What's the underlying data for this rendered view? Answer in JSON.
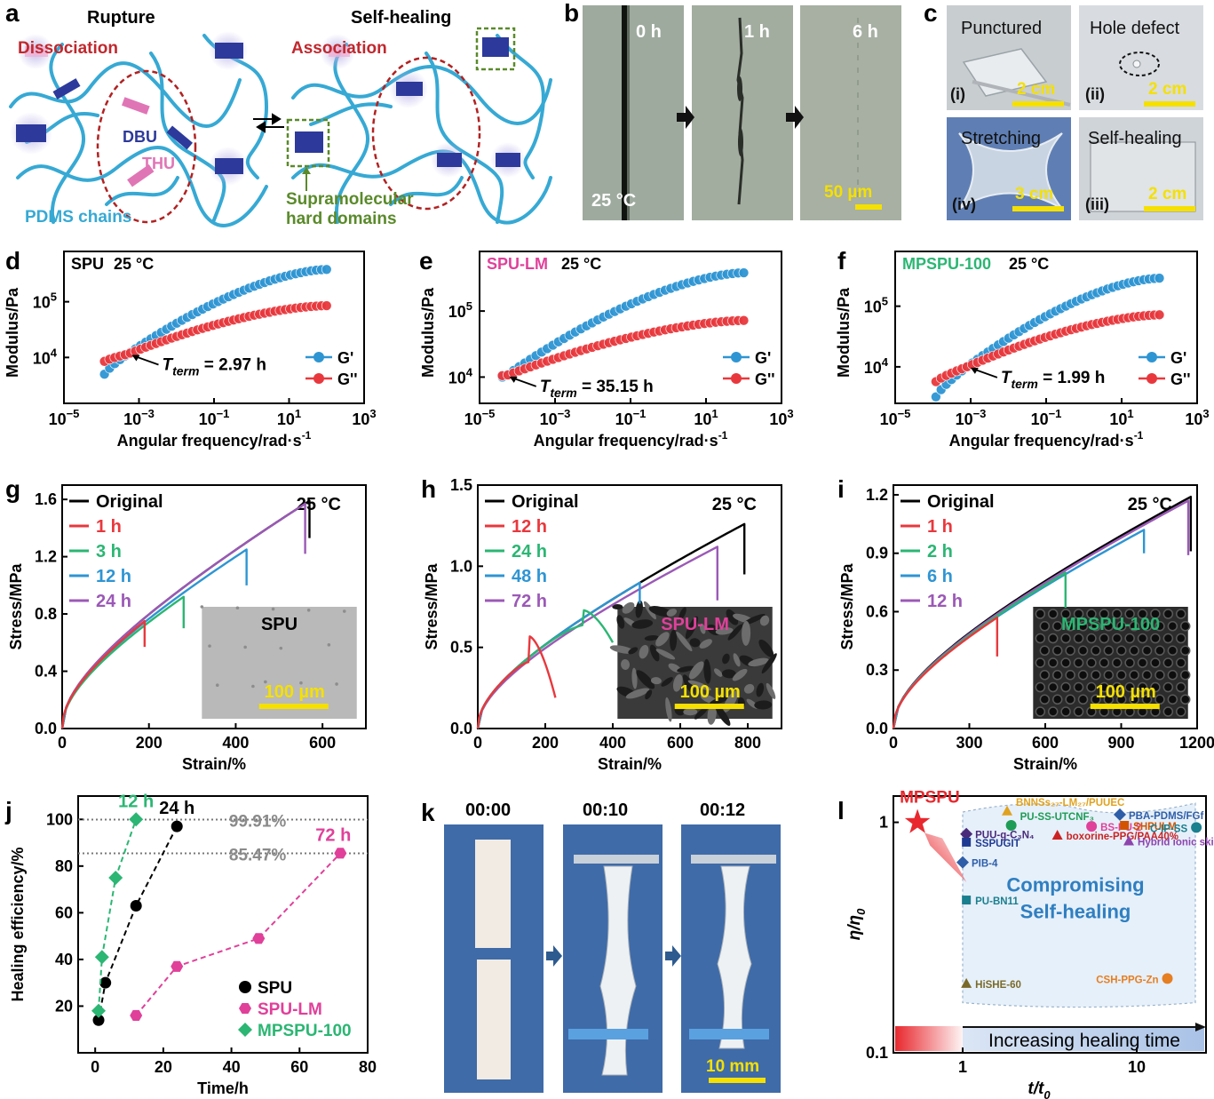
{
  "panels": {
    "a": {
      "letter": "a",
      "left_title": "Rupture",
      "right_title": "Self-healing",
      "dissociation": "Dissociation",
      "association": "Association",
      "dbu": "DBU",
      "thu": "THU",
      "pdms": "PDMS chains",
      "supra_1": "Supramolecular",
      "supra_2": "hard domains"
    },
    "b": {
      "letter": "b",
      "times": [
        "0 h",
        "1 h",
        "6 h"
      ],
      "temp": "25 °C",
      "scale": "50 µm"
    },
    "c": {
      "letter": "c",
      "titles": [
        "Punctured",
        "Hole defect",
        "Stretching",
        "Self-healing"
      ],
      "romans": [
        "(i)",
        "(ii)",
        "(iv)",
        "(iii)"
      ],
      "scales": [
        "2 cm",
        "2 cm",
        "3 cm",
        "2 cm"
      ]
    },
    "k": {
      "letter": "k",
      "times": [
        "00:00",
        "00:10",
        "00:12"
      ],
      "scale": "10 mm"
    }
  },
  "chart_data": [
    {
      "id": "d",
      "letter": "d",
      "type": "scatter",
      "title": "SPU",
      "title_color": "#000000",
      "temp": "25 °C",
      "xlabel": "Angular frequency/rad·s",
      "xlabel_sup": "-1",
      "ylabel": "Modulus/Pa",
      "xscale": "log",
      "yscale": "log",
      "xlim": [
        1e-05,
        1000.0
      ],
      "ylim": [
        1500,
        800000
      ],
      "xticks": [
        {
          "v": 1e-05,
          "t": "10",
          "e": "−5"
        },
        {
          "v": 0.001,
          "t": "10",
          "e": "−3"
        },
        {
          "v": 0.1,
          "t": "10",
          "e": "−1"
        },
        {
          "v": 10,
          "t": "10",
          "e": "1"
        },
        {
          "v": 1000,
          "t": "10",
          "e": "3"
        }
      ],
      "yticks": [
        {
          "v": 10000.0,
          "t": "10",
          "e": "4"
        },
        {
          "v": 100000.0,
          "t": "10",
          "e": "5"
        }
      ],
      "annotation": {
        "text": "= 2.97 h",
        "tsym": "T",
        "tsub": "term",
        "x": 0.00052,
        "y": 11500
      },
      "legend": [
        {
          "name": "G'",
          "color": "#2e95d3"
        },
        {
          "name": "G''",
          "color": "#e8383d"
        }
      ],
      "series": [
        {
          "name": "G'",
          "color": "#2e95d3",
          "xmin": 0.00012,
          "xmax": 100,
          "ystart": 5000,
          "ycross_x": 0.0005,
          "ycross": 11500,
          "yend": 380000
        },
        {
          "name": "G''",
          "color": "#e8383d",
          "xmin": 0.00012,
          "xmax": 100,
          "ystart": 8500,
          "ycross_x": 0.0005,
          "ycross": 11500,
          "yend": 85000
        }
      ]
    },
    {
      "id": "e",
      "letter": "e",
      "type": "scatter",
      "title": "SPU-LM",
      "title_color": "#e0409a",
      "temp": "25 °C",
      "xlabel": "Angular frequency/rad·s",
      "xlabel_sup": "-1",
      "ylabel": "Modulus/Pa",
      "xscale": "log",
      "yscale": "log",
      "xlim": [
        1e-05,
        1000.0
      ],
      "ylim": [
        4000,
        800000
      ],
      "xticks": [
        {
          "v": 1e-05,
          "t": "10",
          "e": "−5"
        },
        {
          "v": 0.001,
          "t": "10",
          "e": "−3"
        },
        {
          "v": 0.1,
          "t": "10",
          "e": "−1"
        },
        {
          "v": 10,
          "t": "10",
          "e": "1"
        },
        {
          "v": 1000,
          "t": "10",
          "e": "3"
        }
      ],
      "yticks": [
        {
          "v": 10000.0,
          "t": "10",
          "e": "4"
        },
        {
          "v": 100000.0,
          "t": "10",
          "e": "5"
        }
      ],
      "annotation": {
        "text": "= 35.15 h",
        "tsym": "T",
        "tsub": "term",
        "x": 5e-05,
        "y": 10500
      },
      "legend": [
        {
          "name": "G'",
          "color": "#2e95d3"
        },
        {
          "name": "G''",
          "color": "#e8383d"
        }
      ],
      "series": [
        {
          "name": "G'",
          "color": "#2e95d3",
          "xmin": 4e-05,
          "xmax": 100,
          "ystart": 10000,
          "ycross_x": 5e-05,
          "ycross": 10500,
          "yend": 380000
        },
        {
          "name": "G''",
          "color": "#e8383d",
          "xmin": 4e-05,
          "xmax": 100,
          "ystart": 10500,
          "ycross_x": 5e-05,
          "ycross": 10500,
          "yend": 72000
        }
      ]
    },
    {
      "id": "f",
      "letter": "f",
      "type": "scatter",
      "title": "MPSPU-100",
      "title_color": "#2bb673",
      "temp": "25 °C",
      "xlabel": "Angular frequency/rad·s",
      "xlabel_sup": "-1",
      "ylabel": "Modulus/Pa",
      "xscale": "log",
      "yscale": "log",
      "xlim": [
        1e-05,
        1000.0
      ],
      "ylim": [
        2500,
        800000
      ],
      "xticks": [
        {
          "v": 1e-05,
          "t": "10",
          "e": "−5"
        },
        {
          "v": 0.001,
          "t": "10",
          "e": "−3"
        },
        {
          "v": 0.1,
          "t": "10",
          "e": "−1"
        },
        {
          "v": 10,
          "t": "10",
          "e": "1"
        },
        {
          "v": 1000,
          "t": "10",
          "e": "3"
        }
      ],
      "yticks": [
        {
          "v": 10000.0,
          "t": "10",
          "e": "4"
        },
        {
          "v": 100000.0,
          "t": "10",
          "e": "5"
        }
      ],
      "annotation": {
        "text": "= 1.99 h",
        "tsym": "T",
        "tsub": "term",
        "x": 0.0008,
        "y": 10000
      },
      "legend": [
        {
          "name": "G'",
          "color": "#2e95d3"
        },
        {
          "name": "G''",
          "color": "#e8383d"
        }
      ],
      "series": [
        {
          "name": "G'",
          "color": "#2e95d3",
          "xmin": 0.00012,
          "xmax": 100,
          "ystart": 3200,
          "ycross_x": 0.0008,
          "ycross": 10000,
          "yend": 290000
        },
        {
          "name": "G''",
          "color": "#e8383d",
          "xmin": 0.00012,
          "xmax": 100,
          "ystart": 5700,
          "ycross_x": 0.0008,
          "ycross": 10000,
          "yend": 72000
        }
      ]
    },
    {
      "id": "g",
      "letter": "g",
      "type": "line",
      "temp": "25 °C",
      "xlabel": "Strain/%",
      "ylabel": "Stress/MPa",
      "xlim": [
        0,
        700
      ],
      "ylim": [
        0,
        1.7
      ],
      "xticks": [
        0,
        200,
        400,
        600
      ],
      "yticks": [
        "0.0",
        "0.4",
        "0.8",
        "1.2",
        "1.6"
      ],
      "inset": {
        "label": "SPU",
        "label_color": "#000000",
        "scale": "100 µm",
        "style": "smooth"
      },
      "series": [
        {
          "name": "Original",
          "color": "#000000",
          "break_x": 570,
          "break_y": 1.59,
          "drop": 0.26
        },
        {
          "name": "1 h",
          "color": "#e8383d",
          "break_x": 190,
          "break_y": 0.75,
          "drop": 0.18
        },
        {
          "name": "3 h",
          "color": "#2bb673",
          "break_x": 280,
          "break_y": 0.92,
          "drop": 0.22
        },
        {
          "name": "12 h",
          "color": "#2e95d3",
          "break_x": 425,
          "break_y": 1.25,
          "drop": 0.25
        },
        {
          "name": "24 h",
          "color": "#9b59b6",
          "break_x": 560,
          "break_y": 1.57,
          "drop": 0.35
        }
      ]
    },
    {
      "id": "h",
      "letter": "h",
      "type": "line",
      "temp": "25 °C",
      "xlabel": "Strain/%",
      "ylabel": "Stress/MPa",
      "xlim": [
        0,
        900
      ],
      "ylim": [
        0,
        1.5
      ],
      "xticks": [
        0,
        200,
        400,
        600,
        800
      ],
      "yticks": [
        "0.0",
        "0.5",
        "1.0",
        "1.5"
      ],
      "inset": {
        "label": "SPU-LM",
        "label_color": "#e0409a",
        "scale": "100 µm",
        "style": "rough"
      },
      "series": [
        {
          "name": "Original",
          "color": "#000000",
          "break_x": 790,
          "break_y": 1.26,
          "drop": 0.31
        },
        {
          "name": "12 h",
          "color": "#e8383d",
          "break_x": 150,
          "break_y": 0.57,
          "drop": 0.38,
          "peak_x": 150,
          "end_x": 230
        },
        {
          "name": "24 h",
          "color": "#2bb673",
          "break_x": 310,
          "break_y": 0.73,
          "drop": 0.2,
          "peak_x": 310,
          "end_x": 400
        },
        {
          "name": "48 h",
          "color": "#2e95d3",
          "break_x": 480,
          "break_y": 0.9,
          "drop": 0.13
        },
        {
          "name": "72 h",
          "color": "#9b59b6",
          "break_x": 710,
          "break_y": 1.12,
          "drop": 0.33
        }
      ]
    },
    {
      "id": "i",
      "letter": "i",
      "type": "line",
      "temp": "25 °C",
      "xlabel": "Strain/%",
      "ylabel": "Stress/MPa",
      "xlim": [
        0,
        1200
      ],
      "ylim": [
        0,
        1.25
      ],
      "xticks": [
        0,
        300,
        600,
        900,
        1200
      ],
      "yticks": [
        "0.0",
        "0.3",
        "0.6",
        "0.9",
        "1.2"
      ],
      "inset": {
        "label": "MPSPU-100",
        "label_color": "#2bb673",
        "scale": "100 µm",
        "style": "pores"
      },
      "series": [
        {
          "name": "Original",
          "color": "#000000",
          "break_x": 1175,
          "break_y": 1.19,
          "drop": 0.28
        },
        {
          "name": "1 h",
          "color": "#e8383d",
          "break_x": 410,
          "break_y": 0.57,
          "drop": 0.2
        },
        {
          "name": "2 h",
          "color": "#2bb673",
          "break_x": 680,
          "break_y": 0.8,
          "drop": 0.18
        },
        {
          "name": "6 h",
          "color": "#2e95d3",
          "break_x": 990,
          "break_y": 1.02,
          "drop": 0.12
        },
        {
          "name": "12 h",
          "color": "#9b59b6",
          "break_x": 1165,
          "break_y": 1.17,
          "drop": 0.28
        }
      ]
    },
    {
      "id": "j",
      "letter": "j",
      "type": "scatter",
      "xlabel": "Time/h",
      "ylabel": "Healing efficiency/%",
      "xlim": [
        -5,
        80
      ],
      "ylim": [
        0,
        110
      ],
      "xticks": [
        0,
        20,
        40,
        60,
        80
      ],
      "yticks": [
        20,
        40,
        60,
        80,
        100
      ],
      "hlines": [
        {
          "y": 99.91,
          "label": "99.91%"
        },
        {
          "y": 85.47,
          "label": "85.47%"
        }
      ],
      "labels": [
        {
          "text": "12 h",
          "x": 12,
          "y": 100,
          "color": "#2bb673"
        },
        {
          "text": "24 h",
          "x": 24,
          "y": 97,
          "color": "#000000"
        },
        {
          "text": "72 h",
          "x": 72,
          "y": 85.47,
          "color": "#e0409a"
        }
      ],
      "series": [
        {
          "name": "SPU",
          "color": "#000000",
          "marker": "circle",
          "x": [
            1,
            3,
            12,
            24
          ],
          "y": [
            14,
            30,
            63,
            97
          ]
        },
        {
          "name": "SPU-LM",
          "color": "#e0409a",
          "marker": "hexagon",
          "x": [
            12,
            24,
            48,
            72
          ],
          "y": [
            16,
            37,
            49,
            85.5
          ]
        },
        {
          "name": "MPSPU-100",
          "color": "#2bb673",
          "marker": "diamond",
          "x": [
            1,
            2,
            6,
            12
          ],
          "y": [
            18,
            41,
            75,
            100
          ]
        }
      ]
    },
    {
      "id": "l",
      "letter": "l",
      "type": "scatter",
      "xlabel": "t/t",
      "xlabel_sub": "0",
      "ylabel": "η/η",
      "ylabel_sub": "0",
      "xscale": "log",
      "yscale": "log",
      "xlim": [
        0.4,
        25
      ],
      "ylim": [
        0.1,
        1.3
      ],
      "xticks": [
        "1",
        "10"
      ],
      "yticks": [
        "0.1",
        "1"
      ],
      "region": [
        "Compromising",
        "Self-healing"
      ],
      "arrow_text": "Increasing healing time",
      "highlight": {
        "name": "MPSPU",
        "x": 0.55,
        "y": 1.0,
        "color": "#e8282e"
      },
      "points": [
        {
          "name": "BNNSs₂₇-LM₂₇/PUUEC",
          "x": 1.8,
          "y": 1.12,
          "color": "#e0a21f"
        },
        {
          "name": "PU-SS-UTCNF₃",
          "x": 1.9,
          "y": 0.97,
          "color": "#1e9c55"
        },
        {
          "name": "PUU-g-C₃N₄",
          "x": 1.05,
          "y": 0.89,
          "color": "#4a2a7a"
        },
        {
          "name": "SSPUGIT",
          "x": 1.05,
          "y": 0.82,
          "color": "#1f3a93"
        },
        {
          "name": "boxorine-PPG/PAA40%",
          "x": 3.5,
          "y": 0.88,
          "color": "#cc2222"
        },
        {
          "name": "BS-PU-2",
          "x": 5.5,
          "y": 0.96,
          "color": "#e0409a"
        },
        {
          "name": "PBA-PDMS/FGf",
          "x": 8,
          "y": 1.08,
          "color": "#2e5ea8"
        },
        {
          "name": "SHPULM",
          "x": 8.5,
          "y": 0.97,
          "color": "#d35400"
        },
        {
          "name": "Hybrid ionic skin",
          "x": 9,
          "y": 0.83,
          "color": "#8e44ad"
        },
        {
          "name": "C-IP-SS",
          "x": 22,
          "y": 0.95,
          "color": "#1a7f8e"
        },
        {
          "name": "PIB-4",
          "x": 1.0,
          "y": 0.67,
          "color": "#2e5ea8"
        },
        {
          "name": "PU-BN11",
          "x": 1.05,
          "y": 0.46,
          "color": "#1a7f8e"
        },
        {
          "name": "HiSHE-60",
          "x": 1.05,
          "y": 0.2,
          "color": "#7a6a2a"
        },
        {
          "name": "CSH-PPG-Zn",
          "x": 15,
          "y": 0.21,
          "color": "#e67e22"
        }
      ]
    }
  ]
}
